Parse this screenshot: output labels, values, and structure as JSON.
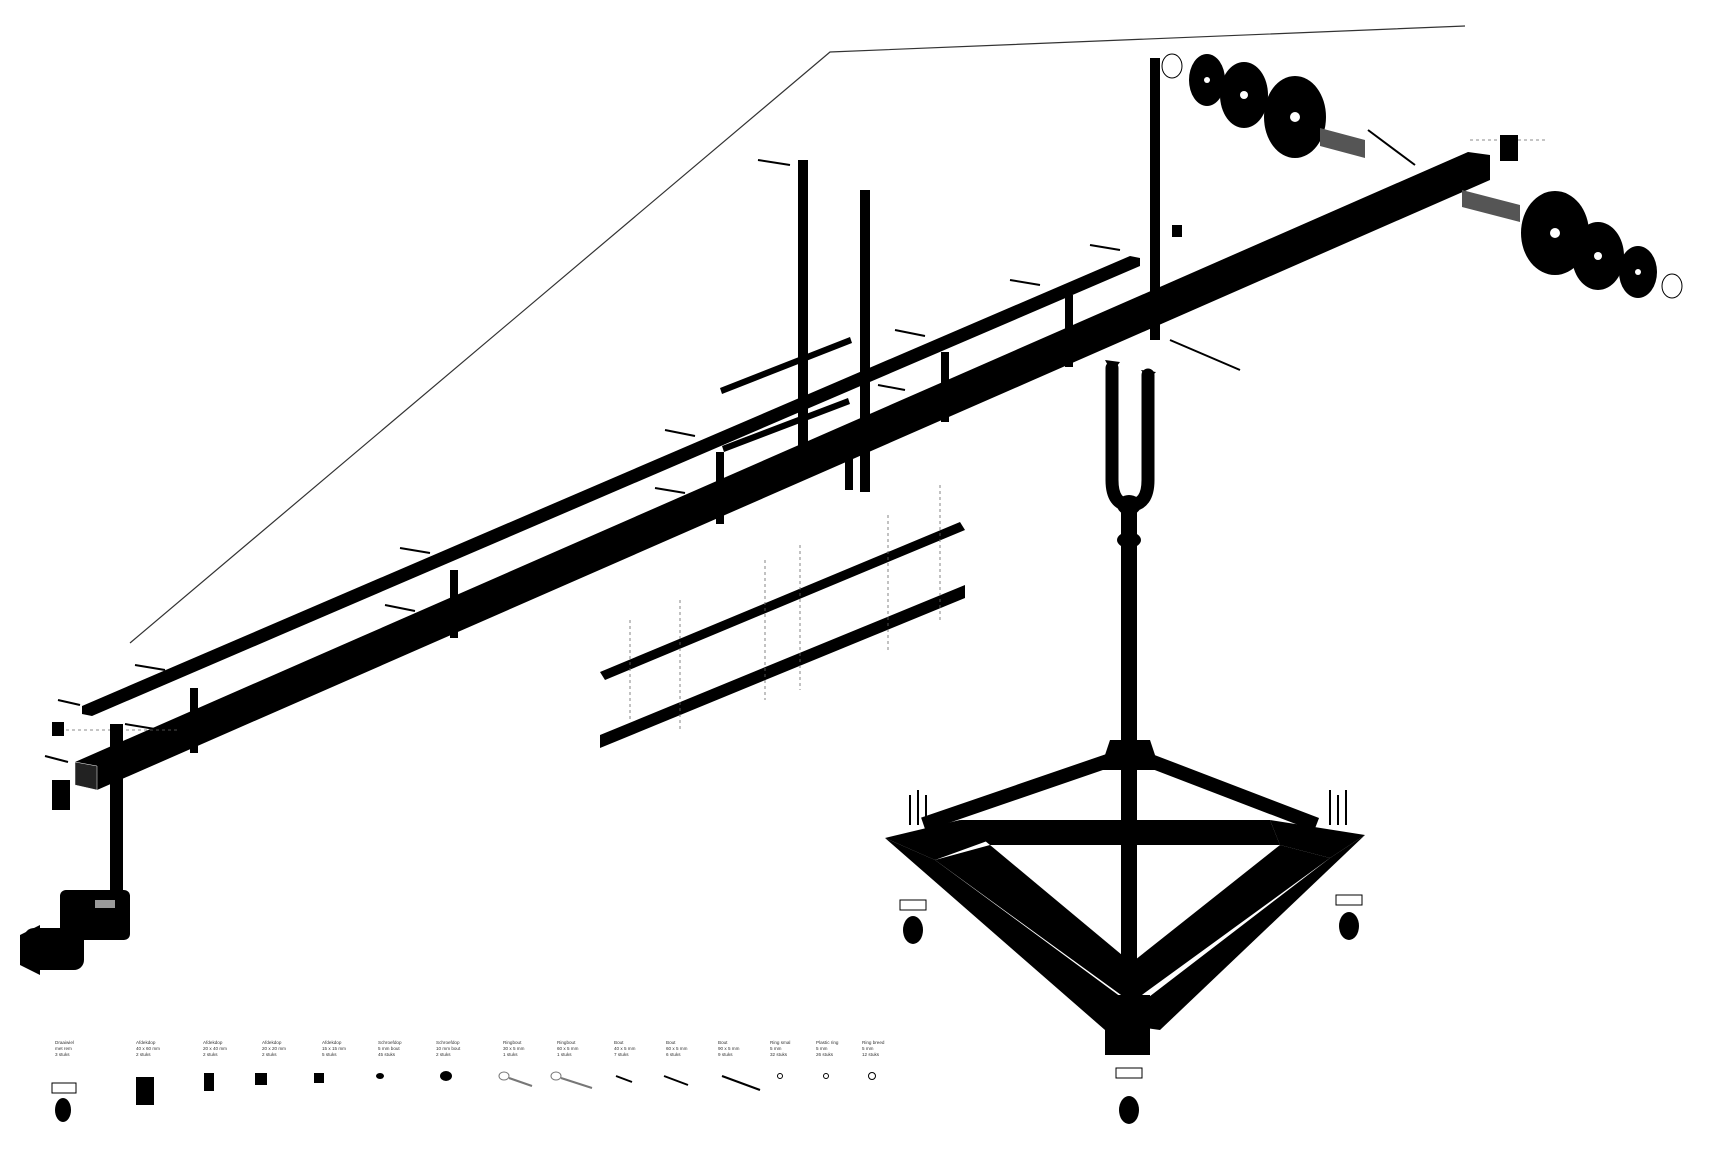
{
  "legend": [
    {
      "name": "Draaiwiel",
      "spec": "met rem",
      "qty": "3 stuks",
      "icon": "caster-wheel-icon"
    },
    {
      "name": "Afdekdop",
      "spec": "40 x 60 mm",
      "qty": "2 stuks",
      "icon": "end-cap-large-icon"
    },
    {
      "name": "Afdekdop",
      "spec": "20 x 40 mm",
      "qty": "2 stuks",
      "icon": "end-cap-medium-icon"
    },
    {
      "name": "Afdekdop",
      "spec": "20 x 20 mm",
      "qty": "2 stuks",
      "icon": "end-cap-square-icon"
    },
    {
      "name": "Afdekdop",
      "spec": "15 x 15 mm",
      "qty": "5 stuks",
      "icon": "end-cap-small-icon"
    },
    {
      "name": "Schroefdop",
      "spec": "5 mm bout",
      "qty": "45 stuks",
      "icon": "screw-cap-small-icon"
    },
    {
      "name": "Schroefdop",
      "spec": "10 mm bout",
      "qty": "2 stuks",
      "icon": "screw-cap-large-icon"
    },
    {
      "name": "Ringbout",
      "spec": "30 x 5 mm",
      "qty": "1 stuks",
      "icon": "eye-bolt-small-icon"
    },
    {
      "name": "Ringbout",
      "spec": "60 x 5 mm",
      "qty": "1 stuks",
      "icon": "eye-bolt-large-icon"
    },
    {
      "name": "Bout",
      "spec": "40 x 5 mm",
      "qty": "7 stuks",
      "icon": "bolt-short-icon"
    },
    {
      "name": "Bout",
      "spec": "60 x 5 mm",
      "qty": "6 stuks",
      "icon": "bolt-medium-icon"
    },
    {
      "name": "Bout",
      "spec": "90 x 5 mm",
      "qty": "9 stuks",
      "icon": "bolt-long-icon"
    },
    {
      "name": "Ring smal",
      "spec": "5 mm",
      "qty": "32 stuks",
      "icon": "washer-narrow-icon"
    },
    {
      "name": "Plastic ring",
      "spec": "5 mm",
      "qty": "26 stuks",
      "icon": "plastic-ring-icon"
    },
    {
      "name": "Ring breed",
      "spec": "5 mm",
      "qty": "12 stuks",
      "icon": "washer-wide-icon"
    }
  ]
}
